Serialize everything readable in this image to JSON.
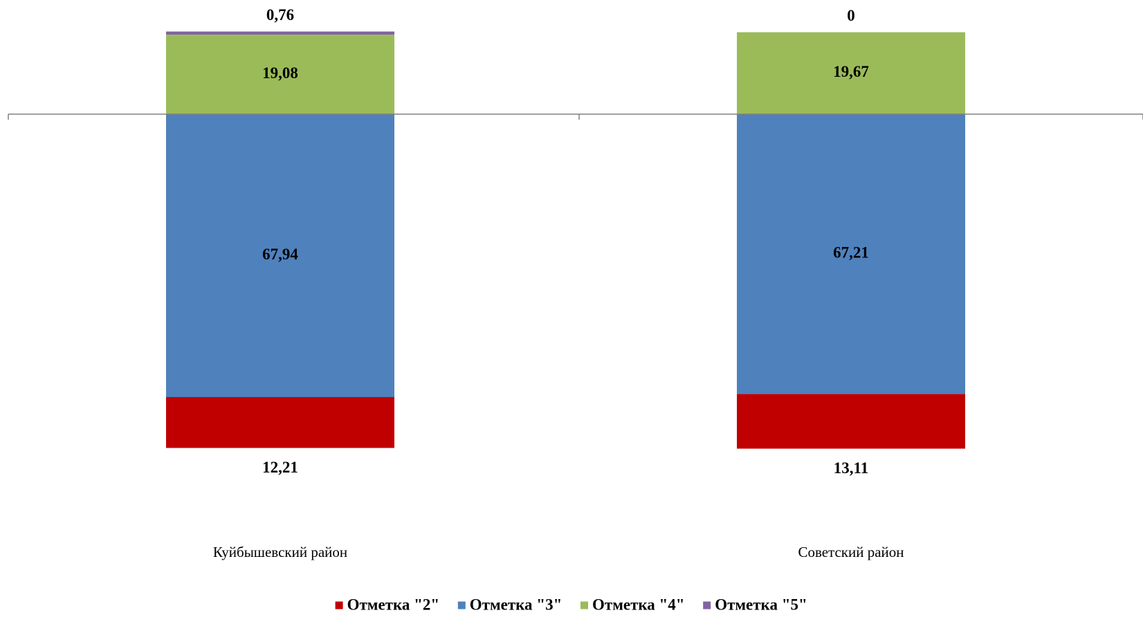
{
  "chart_data": {
    "type": "bar",
    "stacked": true,
    "baseline_split": "series 'Отметка \"4\"' and 'Отметка \"5\"' stack above the axis line; 'Отметка \"2\"' and 'Отметка \"3\"' stack below it",
    "categories": [
      "Куйбышевский  район",
      "Советский  район"
    ],
    "series": [
      {
        "name": "Отметка \"2\"",
        "color": "#C00000",
        "values": [
          12.21,
          13.11
        ],
        "labels": [
          "12,21",
          "13,11"
        ]
      },
      {
        "name": "Отметка \"3\"",
        "color": "#4F81BD",
        "values": [
          67.94,
          67.21
        ],
        "labels": [
          "67,94",
          "67,21"
        ]
      },
      {
        "name": "Отметка \"4\"",
        "color": "#9BBB59",
        "values": [
          19.08,
          19.67
        ],
        "labels": [
          "19,08",
          "19,67"
        ]
      },
      {
        "name": "Отметка \"5\"",
        "color": "#8064A2",
        "values": [
          0.76,
          0
        ],
        "labels": [
          "0,76",
          "0"
        ]
      }
    ],
    "title": "",
    "xlabel": "",
    "ylabel": "",
    "grid": false,
    "legend_position": "bottom",
    "axis_color": "#808080"
  }
}
